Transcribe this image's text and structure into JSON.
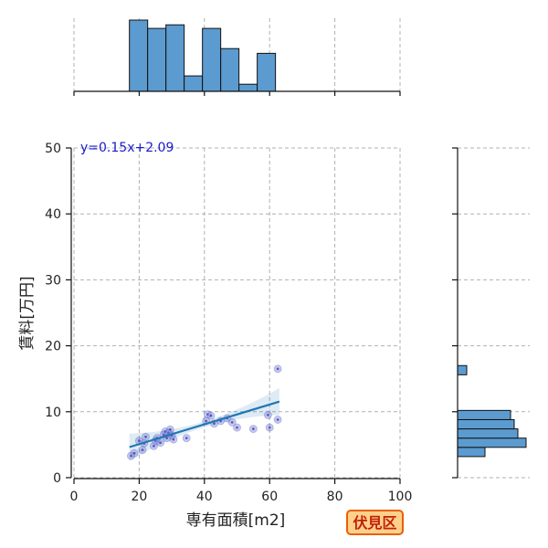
{
  "chart_data": {
    "type": "scatter",
    "xlabel": "専有面積[m2]",
    "ylabel": "賃料[万円]",
    "xlim": [
      0,
      100
    ],
    "ylim": [
      0,
      50
    ],
    "x_ticks": [
      0,
      20,
      40,
      60,
      80,
      100
    ],
    "y_ticks": [
      0,
      10,
      20,
      30,
      40,
      50
    ],
    "grid": true,
    "annotation": "y=0.15x+2.09",
    "region_badge": "伏見区",
    "regression": {
      "slope": 0.15,
      "intercept": 2.09,
      "x_range": [
        17,
        63
      ]
    },
    "points": [
      {
        "x": 17.5,
        "y": 3.3
      },
      {
        "x": 18.5,
        "y": 3.7
      },
      {
        "x": 20.0,
        "y": 5.6
      },
      {
        "x": 21.0,
        "y": 4.2
      },
      {
        "x": 21.5,
        "y": 5.2
      },
      {
        "x": 22.0,
        "y": 6.2
      },
      {
        "x": 24.5,
        "y": 4.8
      },
      {
        "x": 25.0,
        "y": 5.6
      },
      {
        "x": 25.5,
        "y": 6.0
      },
      {
        "x": 26.5,
        "y": 5.3
      },
      {
        "x": 27.5,
        "y": 6.5
      },
      {
        "x": 28.0,
        "y": 7.0
      },
      {
        "x": 28.5,
        "y": 6.0
      },
      {
        "x": 29.0,
        "y": 6.8
      },
      {
        "x": 29.5,
        "y": 7.3
      },
      {
        "x": 30.0,
        "y": 6.4
      },
      {
        "x": 30.5,
        "y": 5.8
      },
      {
        "x": 34.5,
        "y": 6.0
      },
      {
        "x": 40.5,
        "y": 8.6
      },
      {
        "x": 41.0,
        "y": 9.6
      },
      {
        "x": 42.0,
        "y": 9.4
      },
      {
        "x": 43.0,
        "y": 8.2
      },
      {
        "x": 45.0,
        "y": 8.6
      },
      {
        "x": 47.0,
        "y": 9.0
      },
      {
        "x": 48.5,
        "y": 8.4
      },
      {
        "x": 50.0,
        "y": 7.6
      },
      {
        "x": 55.0,
        "y": 7.4
      },
      {
        "x": 59.5,
        "y": 9.5
      },
      {
        "x": 60.0,
        "y": 7.6
      },
      {
        "x": 62.5,
        "y": 8.8
      },
      {
        "x": 62.5,
        "y": 16.5
      }
    ],
    "histogram_x": {
      "bins": [
        [
          17,
          22.6
        ],
        [
          22.6,
          28.2
        ],
        [
          28.2,
          33.8
        ],
        [
          33.8,
          39.4
        ],
        [
          39.4,
          45.0
        ],
        [
          45.0,
          50.6
        ],
        [
          50.6,
          56.2
        ],
        [
          56.2,
          61.8
        ]
      ],
      "counts": [
        6,
        5.3,
        5.6,
        1.3,
        5.3,
        3.6,
        0.6,
        3.2
      ]
    },
    "histogram_y": {
      "bins": [
        [
          3.2,
          4.6
        ],
        [
          4.6,
          6.0
        ],
        [
          6.0,
          7.4
        ],
        [
          7.4,
          8.8
        ],
        [
          8.8,
          10.2
        ],
        [
          15.6,
          17.0
        ]
      ],
      "counts": [
        3,
        7.5,
        6.6,
        6.2,
        5.8,
        1
      ]
    }
  }
}
